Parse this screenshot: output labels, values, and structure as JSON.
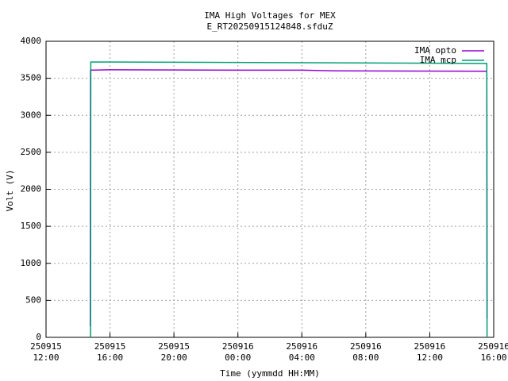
{
  "chart_data": {
    "type": "line",
    "title": "IMA High Voltages for MEX",
    "subtitle": "E_RT20250915124848.sfduZ",
    "x_label": "Time (yymmdd HH:MM)",
    "y_label": "Volt (V)",
    "xlim": [
      "250915 12:00",
      "250916 16:00"
    ],
    "xticks": [
      "250915 12:00",
      "250915 16:00",
      "250915 20:00",
      "250916 00:00",
      "250916 04:00",
      "250916 08:00",
      "250916 12:00",
      "250916 16:00"
    ],
    "ylim": [
      0,
      4000
    ],
    "yticks": [
      0,
      500,
      1000,
      1500,
      2000,
      2500,
      3000,
      3500,
      4000
    ],
    "grid": true,
    "legend": "top-right",
    "series": [
      {
        "name": "IMA opto",
        "color": "#9400d3",
        "x": [
          "250915 14:46",
          "250915 14:47",
          "250915 16:00",
          "250916 00:00",
          "250916 04:00",
          "250916 06:00",
          "250916 15:34",
          "250916 15:35"
        ],
        "values": [
          150,
          3610,
          3615,
          3610,
          3610,
          3600,
          3595,
          250
        ]
      },
      {
        "name": "IMA mcp",
        "color": "#009e73",
        "x": [
          "250915 14:47",
          "250915 14:48",
          "250915 16:00",
          "250916 04:00",
          "250916 15:34",
          "250916 15:35"
        ],
        "values": [
          0,
          3720,
          3720,
          3710,
          3700,
          0
        ]
      }
    ]
  }
}
